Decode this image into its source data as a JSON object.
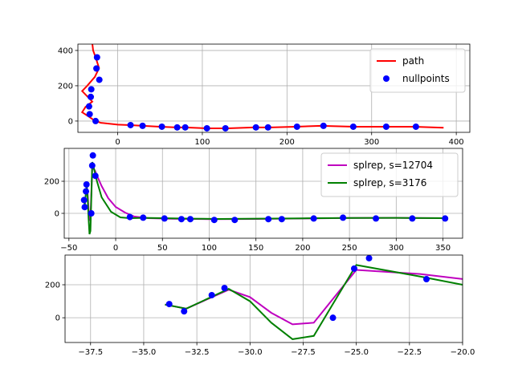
{
  "chart_data": [
    {
      "type": "line",
      "grid": true,
      "legend": "upper right",
      "xlim": [
        -47,
        416
      ],
      "ylim": [
        -64,
        436
      ],
      "xticks": [
        0,
        100,
        200,
        300,
        400
      ],
      "yticks": [
        0,
        200,
        400
      ],
      "series": [
        {
          "name": "path",
          "color": "#ff0000",
          "mode": "lines",
          "x": [
            -30,
            -29,
            -26,
            -22,
            -27,
            -36,
            -42,
            -36,
            -30,
            -38,
            -42,
            -34,
            -28,
            -20,
            0,
            15,
            30,
            50,
            70,
            80,
            105,
            130,
            160,
            180,
            210,
            240,
            280,
            320,
            350,
            385
          ],
          "values": [
            440,
            400,
            360,
            300,
            250,
            200,
            170,
            140,
            110,
            80,
            50,
            25,
            5,
            -10,
            -20,
            -23,
            -27,
            -32,
            -36,
            -36,
            -41,
            -41,
            -36,
            -36,
            -32,
            -27,
            -32,
            -32,
            -32,
            -38
          ]
        },
        {
          "name": "nullpoints",
          "color": "#0000ff",
          "mode": "markers",
          "x": [
            -24.4,
            -25.1,
            -21.7,
            -31.2,
            -31.8,
            -33.8,
            -33.1,
            -26.1,
            15.2,
            29.4,
            52.2,
            70.3,
            79.8,
            105.4,
            127.3,
            163.3,
            177.6,
            211.8,
            243.1,
            278.3,
            317.2,
            352.3
          ],
          "values": [
            361,
            298,
            234,
            180,
            137,
            83,
            39,
            0,
            -23,
            -27,
            -32,
            -36,
            -36,
            -41,
            -41,
            -36,
            -36,
            -32,
            -27,
            -32,
            -32,
            -32
          ]
        }
      ]
    },
    {
      "type": "line",
      "grid": true,
      "legend": "upper right",
      "xlim": [
        -55,
        371
      ],
      "ylim": [
        -155,
        405
      ],
      "xticks": [
        {
          "value": -50,
          "label": "−50"
        },
        0,
        50,
        100,
        150,
        200,
        250,
        300,
        350
      ],
      "yticks": [
        0,
        200
      ],
      "series": [
        {
          "name": "splrep, s=12704",
          "color": "#bf00bf",
          "mode": "lines",
          "x": [
            -34,
            -33,
            -31,
            -30,
            -29,
            -28,
            -27,
            -25,
            -22,
            -20,
            -15,
            -8,
            0,
            10,
            20,
            35,
            60,
            100,
            150,
            200,
            250,
            300,
            352
          ],
          "values": [
            80,
            55,
            170,
            125,
            30,
            -40,
            -30,
            290,
            265,
            235,
            170,
            95,
            40,
            5,
            -20,
            -30,
            -34,
            -36,
            -35,
            -32,
            -29,
            -28,
            -30
          ]
        },
        {
          "name": "splrep, s=3176",
          "color": "#008000",
          "mode": "lines",
          "x": [
            -34,
            -33,
            -31,
            -30,
            -29,
            -28,
            -27,
            -25,
            -22,
            -20,
            -15,
            -5,
            5,
            15,
            30,
            50,
            80,
            110,
            150,
            200,
            250,
            300,
            352
          ],
          "values": [
            80,
            55,
            175,
            100,
            -30,
            -130,
            -110,
            320,
            250,
            200,
            100,
            10,
            -25,
            -30,
            -28,
            -30,
            -33,
            -35,
            -33,
            -31,
            -29,
            -28,
            -30
          ]
        },
        {
          "color": "#0000ff",
          "mode": "markers",
          "x": [
            -24.4,
            -25.1,
            -21.7,
            -31.2,
            -31.8,
            -33.8,
            -33.1,
            -26.1,
            15.2,
            29.4,
            52.2,
            70.3,
            79.8,
            105.4,
            127.3,
            163.3,
            177.6,
            211.8,
            243.1,
            278.3,
            317.2,
            352.3
          ],
          "values": [
            361,
            298,
            234,
            180,
            137,
            83,
            39,
            0,
            -23,
            -27,
            -32,
            -36,
            -36,
            -41,
            -41,
            -36,
            -36,
            -32,
            -27,
            -32,
            -32,
            -32
          ]
        }
      ]
    },
    {
      "type": "line",
      "grid": true,
      "xlim": [
        -38.7,
        -20
      ],
      "ylim": [
        -150,
        380
      ],
      "xticks": [
        {
          "value": -37.5,
          "label": "−37.5"
        },
        {
          "value": -35,
          "label": "−35.0"
        },
        {
          "value": -32.5,
          "label": "−32.5"
        },
        {
          "value": -30,
          "label": "−30.0"
        },
        {
          "value": -27.5,
          "label": "−27.5"
        },
        {
          "value": -25,
          "label": "−25.0"
        },
        {
          "value": -22.5,
          "label": "−22.5"
        },
        {
          "value": -20,
          "label": "−20.0"
        }
      ],
      "yticks": [
        0,
        200
      ],
      "series": [
        {
          "color": "#bf00bf",
          "mode": "lines",
          "x": [
            -34,
            -33,
            -31,
            -30,
            -29,
            -28,
            -27,
            -25,
            -22,
            -20
          ],
          "values": [
            80,
            55,
            170,
            125,
            30,
            -40,
            -30,
            290,
            265,
            235
          ]
        },
        {
          "color": "#008000",
          "mode": "lines",
          "x": [
            -34,
            -33,
            -31,
            -30,
            -29,
            -28,
            -27,
            -25,
            -22,
            -20
          ],
          "values": [
            80,
            55,
            175,
            100,
            -30,
            -130,
            -110,
            320,
            250,
            200
          ]
        },
        {
          "color": "#0000ff",
          "mode": "markers",
          "x": [
            -24.4,
            -25.1,
            -21.7,
            -31.2,
            -31.8,
            -33.8,
            -33.1,
            -26.1
          ],
          "values": [
            361,
            298,
            234,
            180,
            137,
            83,
            39,
            0
          ]
        }
      ]
    }
  ]
}
